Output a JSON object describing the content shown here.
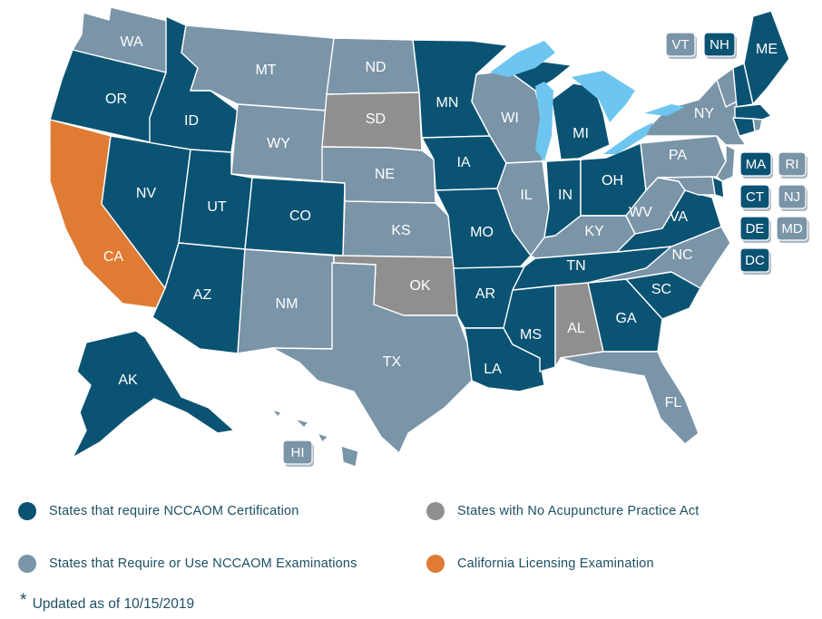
{
  "colors": {
    "certification": "#0b5373",
    "examinations": "#7a94a8",
    "no_act": "#8f8f8f",
    "california": "#e07b34",
    "lakes": "#6ec6f0"
  },
  "states": {
    "WA": {
      "label": "WA",
      "category": "examinations"
    },
    "OR": {
      "label": "OR",
      "category": "certification"
    },
    "CA": {
      "label": "CA",
      "category": "california"
    },
    "ID": {
      "label": "ID",
      "category": "certification"
    },
    "NV": {
      "label": "NV",
      "category": "certification"
    },
    "MT": {
      "label": "MT",
      "category": "examinations"
    },
    "WY": {
      "label": "WY",
      "category": "examinations"
    },
    "UT": {
      "label": "UT",
      "category": "certification"
    },
    "AZ": {
      "label": "AZ",
      "category": "certification"
    },
    "CO": {
      "label": "CO",
      "category": "certification"
    },
    "NM": {
      "label": "NM",
      "category": "examinations"
    },
    "ND": {
      "label": "ND",
      "category": "examinations"
    },
    "SD": {
      "label": "SD",
      "category": "no_act"
    },
    "NE": {
      "label": "NE",
      "category": "examinations"
    },
    "KS": {
      "label": "KS",
      "category": "examinations"
    },
    "OK": {
      "label": "OK",
      "category": "no_act"
    },
    "TX": {
      "label": "TX",
      "category": "examinations"
    },
    "MN": {
      "label": "MN",
      "category": "certification"
    },
    "IA": {
      "label": "IA",
      "category": "certification"
    },
    "MO": {
      "label": "MO",
      "category": "certification"
    },
    "AR": {
      "label": "AR",
      "category": "certification"
    },
    "LA": {
      "label": "LA",
      "category": "certification"
    },
    "WI": {
      "label": "WI",
      "category": "examinations"
    },
    "IL": {
      "label": "IL",
      "category": "examinations"
    },
    "MS": {
      "label": "MS",
      "category": "certification"
    },
    "AL": {
      "label": "AL",
      "category": "no_act"
    },
    "MI": {
      "label": "MI",
      "category": "certification"
    },
    "IN": {
      "label": "IN",
      "category": "certification"
    },
    "OH": {
      "label": "OH",
      "category": "certification"
    },
    "KY": {
      "label": "KY",
      "category": "examinations"
    },
    "TN": {
      "label": "TN",
      "category": "certification"
    },
    "GA": {
      "label": "GA",
      "category": "certification"
    },
    "FL": {
      "label": "FL",
      "category": "examinations"
    },
    "SC": {
      "label": "SC",
      "category": "certification"
    },
    "NC": {
      "label": "NC",
      "category": "examinations"
    },
    "VA": {
      "label": "VA",
      "category": "certification"
    },
    "WV": {
      "label": "WV",
      "category": "examinations"
    },
    "PA": {
      "label": "PA",
      "category": "examinations"
    },
    "NY": {
      "label": "NY",
      "category": "examinations"
    },
    "ME": {
      "label": "ME",
      "category": "certification"
    },
    "AK": {
      "label": "AK",
      "category": "certification"
    },
    "HI": {
      "label": "HI",
      "category": "examinations"
    },
    "VT": {
      "label": "VT",
      "category": "examinations"
    },
    "NH": {
      "label": "NH",
      "category": "certification"
    },
    "MA": {
      "label": "MA",
      "category": "certification"
    },
    "RI": {
      "label": "RI",
      "category": "examinations"
    },
    "CT": {
      "label": "CT",
      "category": "certification"
    },
    "NJ": {
      "label": "NJ",
      "category": "examinations"
    },
    "DE": {
      "label": "DE",
      "category": "certification"
    },
    "MD": {
      "label": "MD",
      "category": "examinations"
    },
    "DC": {
      "label": "DC",
      "category": "certification"
    }
  },
  "legend": {
    "certification": "States that require NCCAOM Certification",
    "no_act": "States with No Acupuncture Practice Act",
    "examinations": "States that Require or Use NCCAOM Examinations",
    "california": "California Licensing Examination"
  },
  "note": {
    "star": "*",
    "text": "Updated as of 10/15/2019"
  }
}
